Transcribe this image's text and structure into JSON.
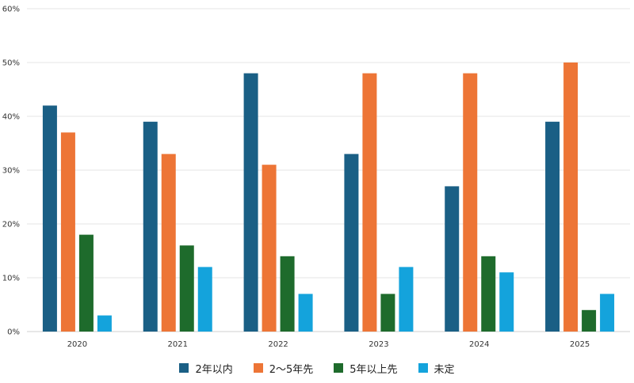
{
  "chart_data": {
    "type": "bar",
    "categories": [
      "2020",
      "2021",
      "2022",
      "2023",
      "2024",
      "2025"
    ],
    "series": [
      {
        "name": "2年以内",
        "color": "#1a5f85",
        "values": [
          42,
          39,
          48,
          33,
          27,
          39
        ]
      },
      {
        "name": "2〜5年先",
        "color": "#ed7536",
        "values": [
          37,
          33,
          31,
          48,
          48,
          50
        ]
      },
      {
        "name": "5年以上先",
        "color": "#1e6b2c",
        "values": [
          18,
          16,
          14,
          7,
          14,
          4
        ]
      },
      {
        "name": "未定",
        "color": "#14a3dc",
        "values": [
          3,
          12,
          7,
          12,
          11,
          7
        ]
      }
    ],
    "ylim": [
      0,
      60
    ],
    "yticks": [
      "0%",
      "10%",
      "20%",
      "30%",
      "40%",
      "50%",
      "60%"
    ],
    "grid": true,
    "legend_position": "bottom"
  }
}
